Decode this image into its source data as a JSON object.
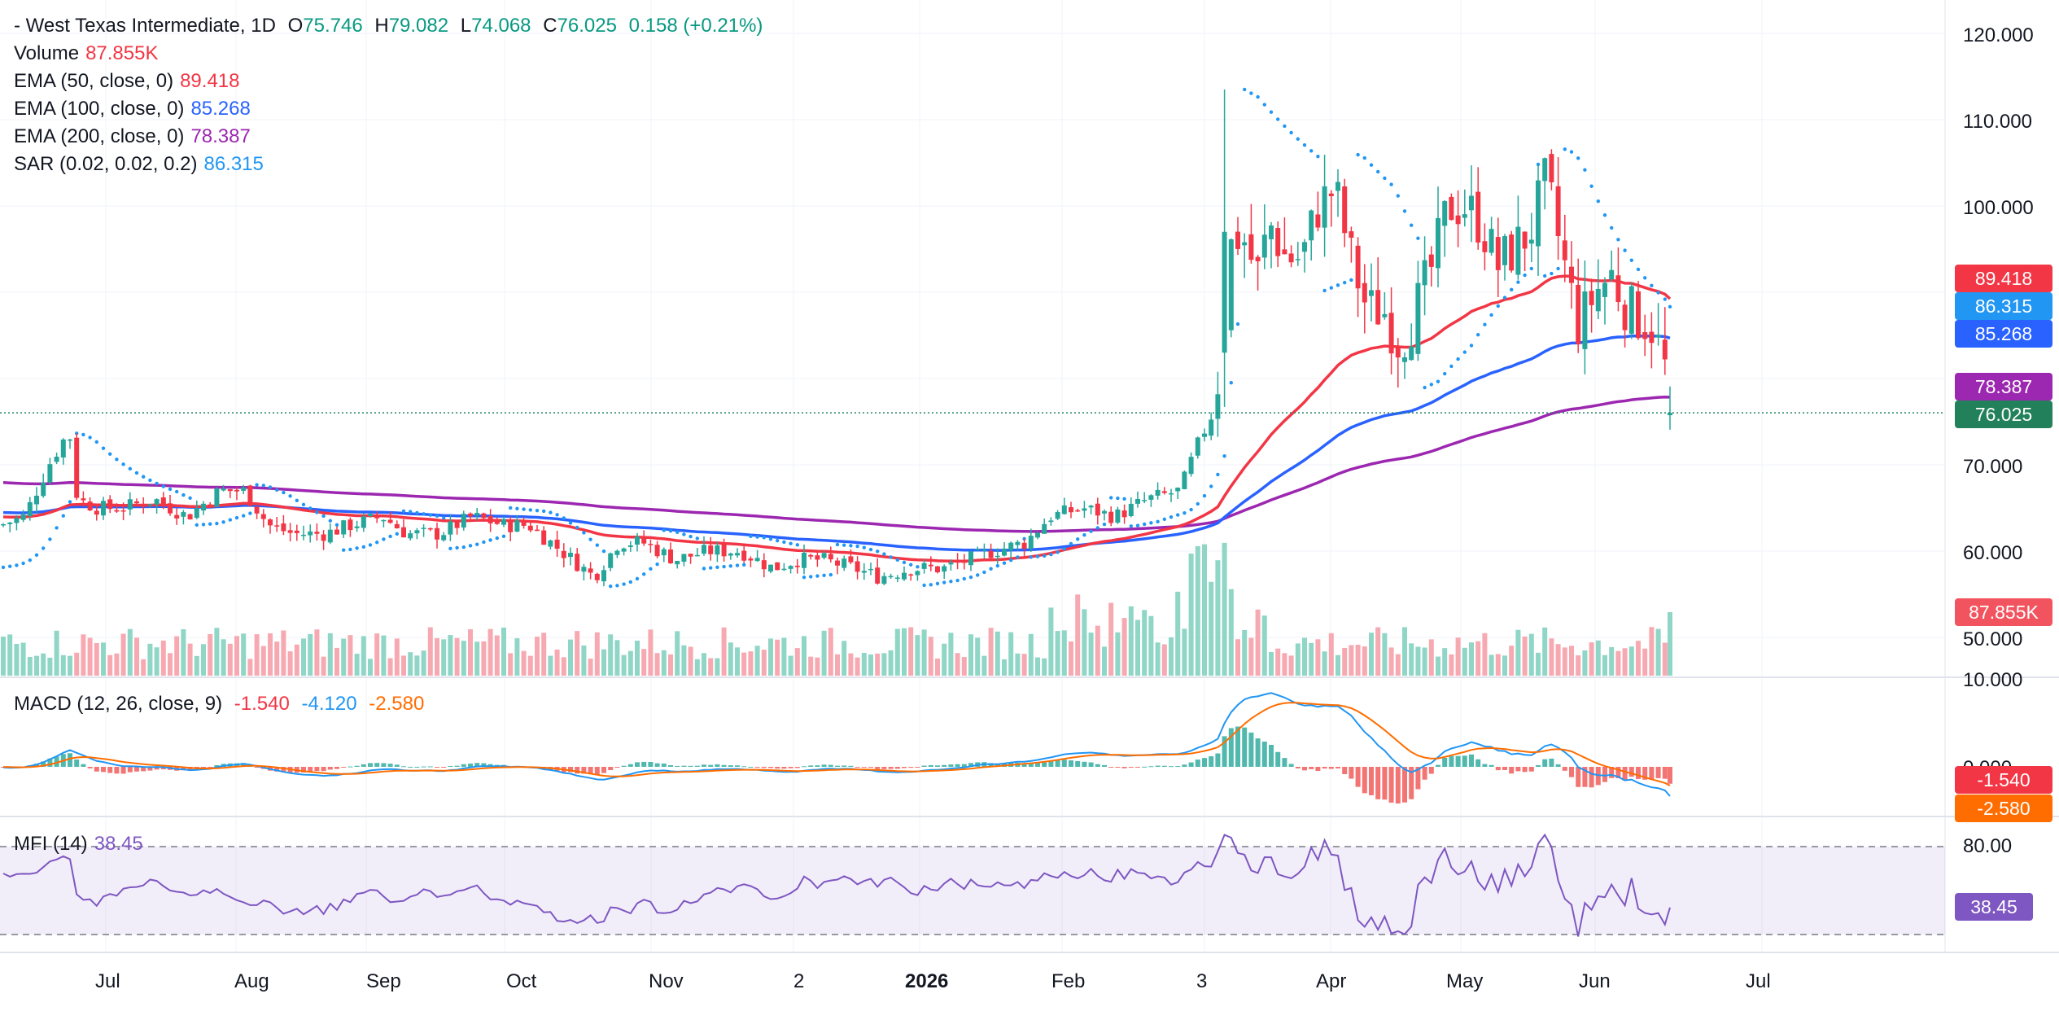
{
  "legend": {
    "symbol_line": {
      "name": "- West Texas Intermediate, 1D",
      "o_label": "O",
      "o_value": "75.746",
      "h_label": "H",
      "h_value": "79.082",
      "l_label": "L",
      "l_value": "74.068",
      "c_label": "C",
      "c_value": "76.025",
      "change": "0.158 (+0.21%)"
    },
    "volume": {
      "label": "Volume",
      "value": "87.855K"
    },
    "ema50": {
      "label": "EMA (50, close, 0)",
      "value": "89.418"
    },
    "ema100": {
      "label": "EMA (100, close, 0)",
      "value": "85.268"
    },
    "ema200": {
      "label": "EMA (200, close, 0)",
      "value": "78.387"
    },
    "sar": {
      "label": "SAR (0.02, 0.02, 0.2)",
      "value": "86.315"
    },
    "macd": {
      "label": "MACD (12, 26, close, 9)",
      "hist": "-1.540",
      "macd": "-4.120",
      "signal": "-2.580"
    },
    "mfi": {
      "label": "MFI (14)",
      "value": "38.45"
    }
  },
  "price_axis": [
    "120.000",
    "110.000",
    "100.000",
    "70.000",
    "60.000",
    "50.000"
  ],
  "macd_axis": [
    "10.000",
    "0.000"
  ],
  "mfi_axis": [
    "80.00"
  ],
  "tags": {
    "ema50": "89.418",
    "sar": "86.315",
    "ema100": "85.268",
    "ema200": "78.387",
    "close": "76.025",
    "volume": "87.855K",
    "macd_hist": "-1.540",
    "macd_signal": "-2.580",
    "mfi": "38.45"
  },
  "colors": {
    "up": "#26a69a",
    "down": "#f23645",
    "ema50": "#f23645",
    "ema100": "#2962ff",
    "ema200": "#9c27b0",
    "sar": "#2196f3",
    "macd_line": "#2196f3",
    "signal_line": "#ff6d00",
    "mfi_line": "#7e57c2"
  },
  "chart_data": {
    "type": "candlestick",
    "symbol": "West Texas Intermediate",
    "interval": "1D",
    "last_bar": {
      "open": 75.746,
      "high": 79.082,
      "low": 74.068,
      "close": 76.025,
      "change": 0.158,
      "change_pct": 0.21
    },
    "x_ticks": [
      "Jul",
      "Aug",
      "Sep",
      "Oct",
      "Nov",
      "2",
      "2026",
      "Feb",
      "3",
      "Apr",
      "May",
      "Jun",
      "Jul"
    ],
    "price_range": [
      45,
      120
    ],
    "price_ticks": [
      120,
      110,
      100,
      70,
      60,
      50
    ],
    "close_series": [
      {
        "x": "Jun",
        "y": 64
      },
      {
        "x": "late Jun",
        "y": 75
      },
      {
        "x": "Jul",
        "y": 65
      },
      {
        "x": "Aug",
        "y": 64
      },
      {
        "x": "Sep",
        "y": 65
      },
      {
        "x": "Oct",
        "y": 63
      },
      {
        "x": "Nov",
        "y": 60
      },
      {
        "x": "Dec",
        "y": 58
      },
      {
        "x": "2026",
        "y": 58
      },
      {
        "x": "Feb",
        "y": 63
      },
      {
        "x": "late Feb",
        "y": 66
      },
      {
        "x": "early Mar",
        "y": 85
      },
      {
        "x": "Mar",
        "y": 97
      },
      {
        "x": "Apr",
        "y": 100
      },
      {
        "x": "mid Apr",
        "y": 90
      },
      {
        "x": "May",
        "y": 103
      },
      {
        "x": "late May",
        "y": 98
      },
      {
        "x": "Jun",
        "y": 90
      },
      {
        "x": "mid Jun",
        "y": 76.025
      }
    ],
    "indicators": {
      "ema50": 89.418,
      "ema100": 85.268,
      "ema200": 78.387,
      "sar": 86.315,
      "volume": "87.855K",
      "macd": {
        "hist": -1.54,
        "macd": -4.12,
        "signal": -2.58,
        "axis": [
          10,
          0
        ]
      },
      "mfi": {
        "value": 38.45,
        "upper_band": 80,
        "lower_band": 20
      }
    }
  }
}
